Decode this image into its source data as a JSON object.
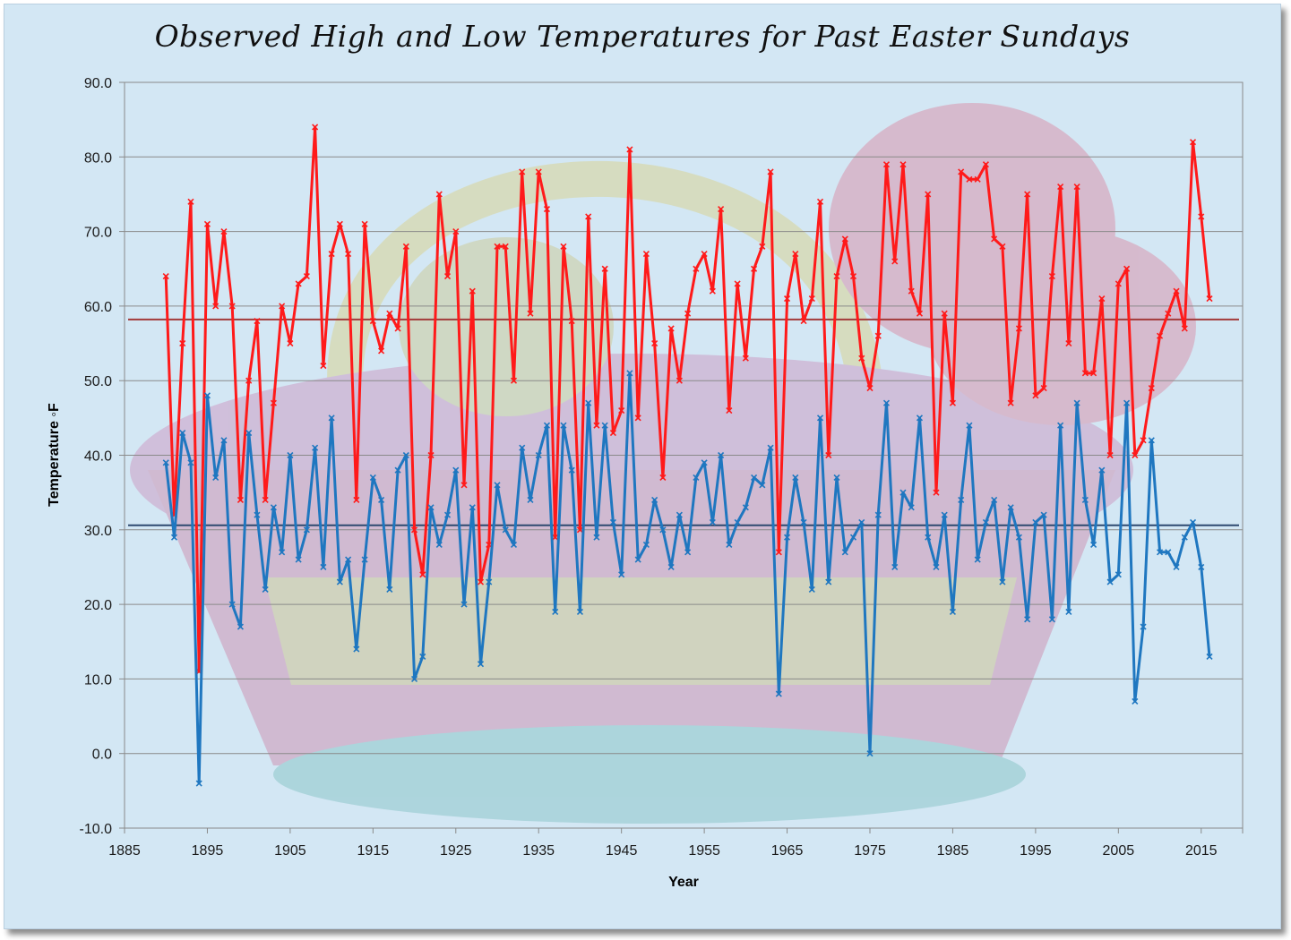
{
  "chart_data": {
    "type": "line",
    "title": "Observed High and Low Temperatures for Past Easter Sundays",
    "xlabel": "Year",
    "ylabel": "Temperature ◦F",
    "xlim": [
      1885,
      2020
    ],
    "ylim": [
      -10,
      90
    ],
    "x_ticks": [
      1885,
      1895,
      1905,
      1915,
      1925,
      1935,
      1945,
      1955,
      1965,
      1975,
      1985,
      1995,
      2005,
      2015
    ],
    "y_ticks": [
      -10.0,
      0.0,
      10.0,
      20.0,
      30.0,
      40.0,
      50.0,
      60.0,
      70.0,
      80.0,
      90.0
    ],
    "grid": "horizontal",
    "legend": "none",
    "x": [
      1890,
      1891,
      1892,
      1893,
      1894,
      1895,
      1896,
      1897,
      1898,
      1899,
      1900,
      1901,
      1902,
      1903,
      1904,
      1905,
      1906,
      1907,
      1908,
      1909,
      1910,
      1911,
      1912,
      1913,
      1914,
      1915,
      1916,
      1917,
      1918,
      1919,
      1920,
      1921,
      1922,
      1923,
      1924,
      1925,
      1926,
      1927,
      1928,
      1929,
      1930,
      1931,
      1932,
      1933,
      1934,
      1935,
      1936,
      1937,
      1938,
      1939,
      1940,
      1941,
      1942,
      1943,
      1944,
      1945,
      1946,
      1947,
      1948,
      1949,
      1950,
      1951,
      1952,
      1953,
      1954,
      1955,
      1956,
      1957,
      1958,
      1959,
      1960,
      1961,
      1962,
      1963,
      1964,
      1965,
      1966,
      1967,
      1968,
      1969,
      1970,
      1971,
      1972,
      1973,
      1974,
      1975,
      1976,
      1977,
      1978,
      1979,
      1980,
      1981,
      1982,
      1983,
      1984,
      1985,
      1986,
      1987,
      1988,
      1989,
      1990,
      1991,
      1992,
      1993,
      1994,
      1995,
      1996,
      1997,
      1998,
      1999,
      2000,
      2001,
      2002,
      2003,
      2004,
      2005,
      2006,
      2007,
      2008,
      2009,
      2010,
      2011,
      2012,
      2013,
      2014,
      2015,
      2016
    ],
    "series": [
      {
        "values": [
          64,
          32,
          55,
          74,
          11,
          71,
          60,
          70,
          60,
          34,
          50,
          58,
          34,
          47,
          60,
          55,
          63,
          64,
          84,
          52,
          67,
          71,
          67,
          34,
          71,
          58,
          54,
          59,
          57,
          68,
          30,
          24,
          40,
          75,
          64,
          70,
          36,
          62,
          23,
          28,
          68,
          68,
          50,
          78,
          59,
          78,
          73,
          29,
          68,
          58,
          30,
          72,
          44,
          65,
          43,
          46,
          81,
          45,
          67,
          55,
          37,
          57,
          50,
          59,
          65,
          67,
          62,
          73,
          46,
          63,
          53,
          65,
          68,
          78,
          27,
          61,
          67,
          58,
          61,
          74,
          40,
          64,
          69,
          64,
          53,
          49,
          56,
          79,
          66,
          79,
          62,
          59,
          75,
          35,
          59,
          47,
          78,
          77,
          77,
          79,
          69,
          68,
          47,
          57,
          75,
          48,
          49,
          64,
          76,
          55,
          76,
          51,
          51,
          61,
          40,
          63,
          65,
          40,
          42,
          49,
          56,
          59,
          62,
          57,
          82,
          72,
          61
        ],
        "color": "#ff1a1a"
      },
      {
        "values": [
          39,
          29,
          43,
          39,
          -4,
          48,
          37,
          42,
          20,
          17,
          43,
          32,
          22,
          33,
          27,
          40,
          26,
          30,
          41,
          25,
          45,
          23,
          26,
          14,
          26,
          37,
          34,
          22,
          38,
          40,
          10,
          13,
          33,
          28,
          32,
          38,
          20,
          33,
          12,
          23,
          36,
          30,
          28,
          41,
          34,
          40,
          44,
          19,
          44,
          38,
          19,
          47,
          29,
          44,
          31,
          24,
          51,
          26,
          28,
          34,
          30,
          25,
          32,
          27,
          37,
          39,
          31,
          40,
          28,
          31,
          33,
          37,
          36,
          41,
          8,
          29,
          37,
          31,
          22,
          45,
          23,
          37,
          27,
          29,
          31,
          0,
          32,
          47,
          25,
          35,
          33,
          45,
          29,
          25,
          32,
          19,
          34,
          44,
          26,
          31,
          34,
          23,
          33,
          29,
          18,
          31,
          32,
          18,
          44,
          19,
          47,
          34,
          28,
          38,
          23,
          24,
          47,
          7,
          17,
          42,
          27,
          27,
          25,
          29,
          31,
          25,
          13
        ],
        "color": "#1f77c0"
      }
    ],
    "reference_lines": [
      {
        "y": 58.2,
        "color": "#a33a3a"
      },
      {
        "y": 30.6,
        "color": "#2e4a70"
      }
    ]
  }
}
